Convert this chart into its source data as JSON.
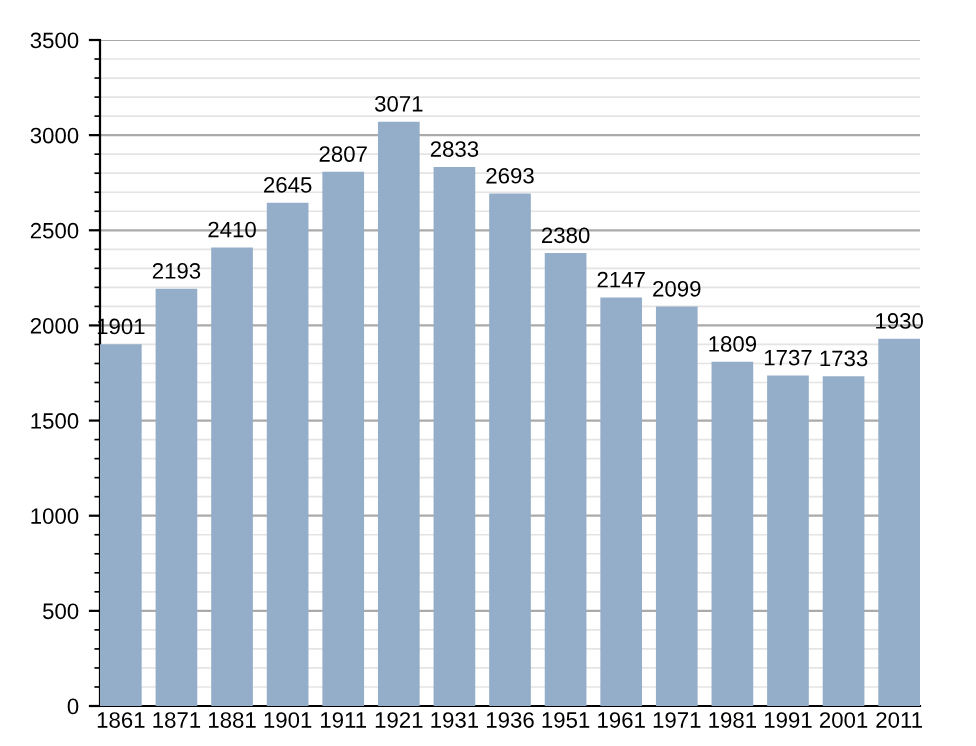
{
  "chart_data": {
    "type": "bar",
    "categories": [
      "1861",
      "1871",
      "1881",
      "1901",
      "1911",
      "1921",
      "1931",
      "1936",
      "1951",
      "1961",
      "1971",
      "1981",
      "1991",
      "2001",
      "2011"
    ],
    "values": [
      1901,
      2193,
      2410,
      2645,
      2807,
      3071,
      2833,
      2693,
      2380,
      2147,
      2099,
      1809,
      1737,
      1733,
      1930
    ],
    "color": "#94aec9",
    "ylim": [
      0,
      3500
    ],
    "yticks": [
      0,
      500,
      1000,
      1500,
      2000,
      2500,
      3000,
      3500
    ],
    "grid": "y",
    "data_labels": true
  }
}
